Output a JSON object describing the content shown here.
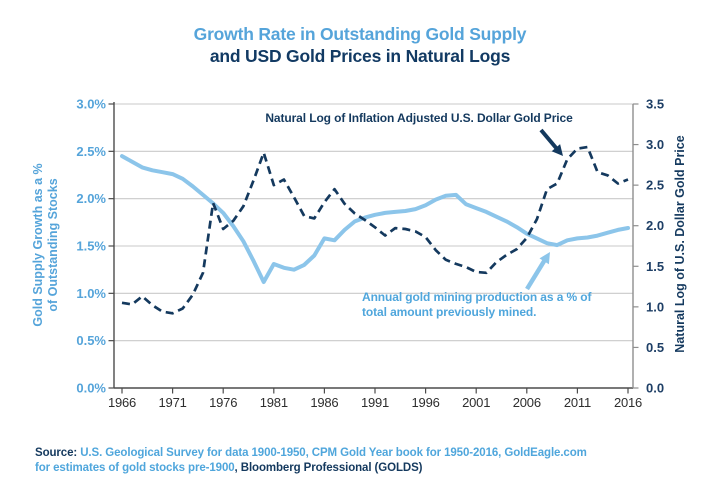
{
  "title": {
    "line1": "Growth Rate in Outstanding Gold Supply",
    "line2": "and USD Gold Prices in Natural Logs"
  },
  "annotations": {
    "price_label": "Natural Log of Inflation Adjusted U.S. Dollar Gold Price",
    "supply_label_line1": "Annual gold mining production as a % of",
    "supply_label_line2": "total amount previously mined."
  },
  "source": {
    "prefix": "Source: ",
    "credit_blue_line1": "U.S. Geological Survey for data 1900-1950, CPM Gold Year book for 1950-2016, GoldEagle.com",
    "credit_blue_line2": "for estimates of gold stocks pre-1900",
    "credit_navy": ", Bloomberg Professional (GOLDS)"
  },
  "colors": {
    "light_blue_line": "#8CC5EA",
    "blue_text": "#55A4DA",
    "navy": "#14395E",
    "grid": "#C9C9C9",
    "axis_dark": "#4C4C4C",
    "axis_gray": "#8E8E8E",
    "x_label": "#2E2E2E",
    "right_label": "#1E3F66"
  },
  "chart_data": {
    "type": "line",
    "title": "Growth Rate in Outstanding Gold Supply and USD Gold Prices in Natural Logs",
    "grid": "horizontal",
    "legend_position": "none (inline annotations with arrows)",
    "years": [
      1966,
      1967,
      1968,
      1969,
      1970,
      1971,
      1972,
      1973,
      1974,
      1975,
      1976,
      1977,
      1978,
      1979,
      1980,
      1981,
      1982,
      1983,
      1984,
      1985,
      1986,
      1987,
      1988,
      1989,
      1990,
      1991,
      1992,
      1993,
      1994,
      1995,
      1996,
      1997,
      1998,
      1999,
      2000,
      2001,
      2002,
      2003,
      2004,
      2005,
      2006,
      2007,
      2008,
      2009,
      2010,
      2011,
      2012,
      2013,
      2014,
      2015,
      2016
    ],
    "x_axis": {
      "tick_years": [
        1966,
        1971,
        1976,
        1981,
        1986,
        1991,
        1996,
        2001,
        2006,
        2011,
        2016
      ],
      "tick_labels": [
        "1966",
        "1971",
        "1976",
        "1981",
        "1986",
        "1991",
        "1996",
        "2001",
        "2006",
        "2011",
        "2016"
      ]
    },
    "left_axis": {
      "title_line1": "Gold Supply Growth as a %",
      "title_line2": "of Outstanding Stocks",
      "min": 0,
      "max": 3,
      "step": 0.5,
      "tick_labels": [
        "0.0%",
        "0.5%",
        "1.0%",
        "1.5%",
        "2.0%",
        "2.5%",
        "3.0%"
      ]
    },
    "right_axis": {
      "title": "Natural Log of U.S. Dollar Gold Price",
      "min": 0,
      "max": 3.5,
      "step": 0.5,
      "tick_labels": [
        "0.0",
        "0.5",
        "1.0",
        "1.5",
        "2.0",
        "2.5",
        "3.0",
        "3.5"
      ]
    },
    "series": [
      {
        "name": "Annual gold mining production as a % of total amount previously mined.",
        "axis": "left",
        "style": "solid",
        "color": "#8CC5EA",
        "values": [
          2.45,
          2.39,
          2.33,
          2.3,
          2.28,
          2.26,
          2.21,
          2.13,
          2.04,
          1.95,
          1.85,
          1.71,
          1.55,
          1.34,
          1.12,
          1.31,
          1.27,
          1.25,
          1.3,
          1.4,
          1.58,
          1.56,
          1.67,
          1.76,
          1.8,
          1.83,
          1.85,
          1.86,
          1.87,
          1.89,
          1.93,
          1.99,
          2.03,
          2.04,
          1.94,
          1.9,
          1.86,
          1.81,
          1.76,
          1.7,
          1.63,
          1.58,
          1.53,
          1.51,
          1.56,
          1.58,
          1.59,
          1.61,
          1.64,
          1.67,
          1.69
        ]
      },
      {
        "name": "Natural Log of Inflation Adjusted U.S. Dollar Gold Price",
        "axis": "right",
        "style": "dashed",
        "color": "#14395E",
        "values": [
          1.05,
          1.03,
          1.13,
          1.02,
          0.94,
          0.92,
          0.98,
          1.15,
          1.42,
          2.28,
          1.96,
          2.06,
          2.24,
          2.56,
          2.9,
          2.5,
          2.57,
          2.35,
          2.12,
          2.09,
          2.29,
          2.45,
          2.27,
          2.15,
          2.07,
          1.98,
          1.88,
          1.97,
          1.96,
          1.93,
          1.86,
          1.7,
          1.58,
          1.53,
          1.49,
          1.43,
          1.42,
          1.55,
          1.64,
          1.71,
          1.85,
          2.08,
          2.45,
          2.52,
          2.82,
          2.95,
          2.97,
          2.66,
          2.62,
          2.52,
          2.57
        ]
      }
    ]
  }
}
